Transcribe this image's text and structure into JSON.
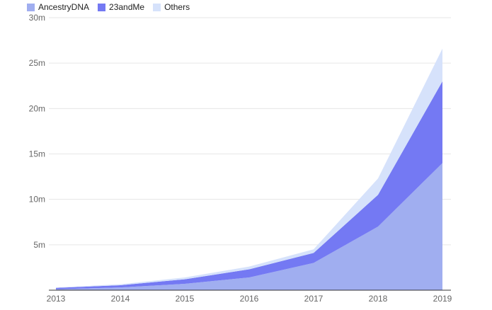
{
  "chart_data": {
    "type": "area",
    "stacked": true,
    "categories": [
      "2013",
      "2014",
      "2015",
      "2016",
      "2017",
      "2018",
      "2019"
    ],
    "series": [
      {
        "name": "AncestryDNA",
        "color": "#a0aef0",
        "values": [
          0.1,
          0.3,
          0.7,
          1.4,
          3.0,
          7.0,
          14.0
        ]
      },
      {
        "name": "23andMe",
        "color": "#7479f3",
        "values": [
          0.15,
          0.25,
          0.5,
          0.9,
          1.1,
          3.5,
          9.0
        ]
      },
      {
        "name": "Others",
        "color": "#d6e2fb",
        "values": [
          0.05,
          0.1,
          0.2,
          0.3,
          0.4,
          1.8,
          3.6
        ]
      }
    ],
    "y_ticks": [
      "30m",
      "25m",
      "20m",
      "15m",
      "10m",
      "5m"
    ],
    "ylim": [
      0,
      30
    ],
    "grid": true,
    "legend_position": "top-left"
  }
}
